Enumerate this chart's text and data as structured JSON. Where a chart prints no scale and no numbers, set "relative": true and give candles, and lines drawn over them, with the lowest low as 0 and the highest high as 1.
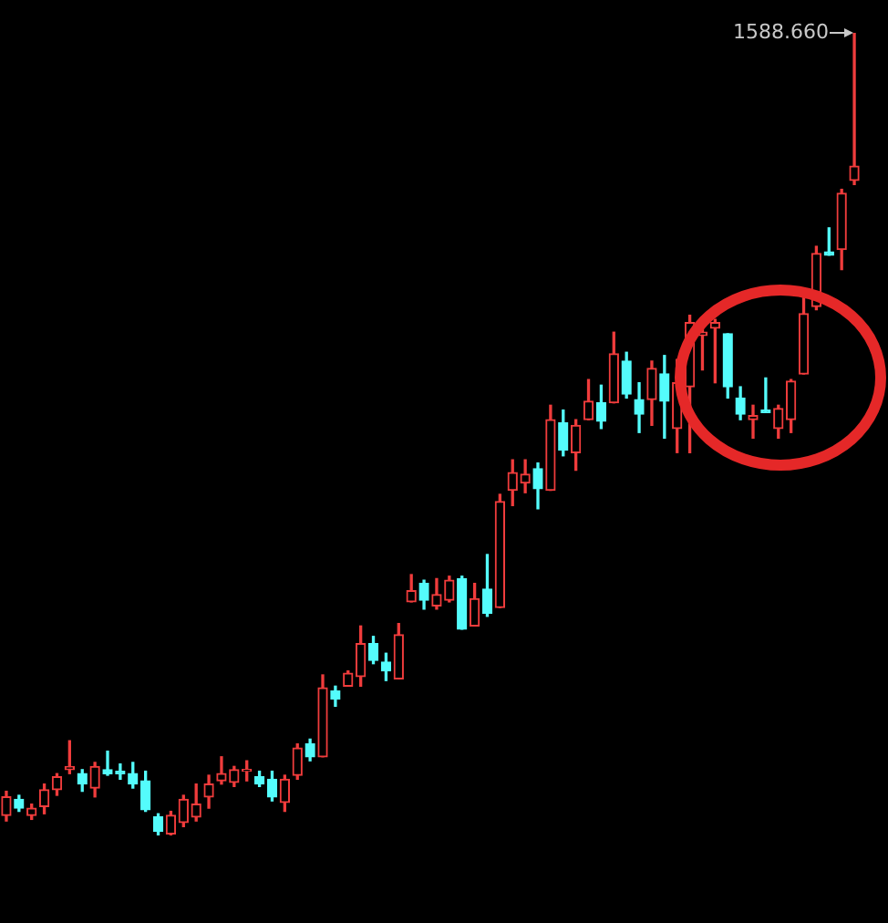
{
  "chart_data": {
    "type": "candlestick",
    "relative": true,
    "categories": [
      null,
      null,
      null,
      null,
      null,
      null,
      null,
      null,
      null,
      null,
      null,
      null,
      null,
      null,
      null,
      null,
      null,
      null,
      null,
      null,
      null,
      null,
      null,
      null,
      null,
      null,
      null,
      null,
      null,
      null,
      null,
      null,
      null,
      null,
      null,
      null,
      null,
      null,
      null,
      null,
      null,
      null,
      null,
      null,
      null,
      null,
      null,
      null,
      null,
      null,
      null,
      null,
      null,
      null,
      null,
      null,
      null,
      null,
      null,
      null,
      null,
      null,
      null,
      null,
      null,
      null,
      null,
      null
    ],
    "ohlc": [
      [
        0.025,
        0.055,
        0.018,
        0.048
      ],
      [
        0.045,
        0.05,
        0.03,
        0.034
      ],
      [
        0.025,
        0.039,
        0.02,
        0.034
      ],
      [
        0.036,
        0.064,
        0.027,
        0.057
      ],
      [
        0.057,
        0.077,
        0.05,
        0.073
      ],
      [
        0.082,
        0.118,
        0.077,
        0.086
      ],
      [
        0.077,
        0.082,
        0.055,
        0.064
      ],
      [
        0.059,
        0.091,
        0.048,
        0.086
      ],
      [
        0.082,
        0.105,
        0.075,
        0.077
      ],
      [
        0.08,
        0.089,
        0.07,
        0.077
      ],
      [
        0.077,
        0.091,
        0.059,
        0.064
      ],
      [
        0.068,
        0.08,
        0.03,
        0.032
      ],
      [
        0.023,
        0.027,
        0,
        0.005
      ],
      [
        0.002,
        0.03,
        0,
        0.025
      ],
      [
        0.016,
        0.05,
        0.011,
        0.045
      ],
      [
        0.023,
        0.064,
        0.018,
        0.039
      ],
      [
        0.048,
        0.075,
        0.034,
        0.064
      ],
      [
        0.068,
        0.098,
        0.064,
        0.077
      ],
      [
        0.066,
        0.086,
        0.061,
        0.082
      ],
      [
        0.08,
        0.093,
        0.068,
        0.082
      ],
      [
        0.073,
        0.08,
        0.061,
        0.064
      ],
      [
        0.07,
        0.08,
        0.043,
        0.048
      ],
      [
        0.041,
        0.075,
        0.03,
        0.07
      ],
      [
        0.075,
        0.114,
        0.07,
        0.109
      ],
      [
        0.114,
        0.12,
        0.093,
        0.098
      ],
      [
        0.098,
        0.2,
        0.098,
        0.184
      ],
      [
        0.18,
        0.186,
        0.161,
        0.17
      ],
      [
        0.186,
        0.205,
        0.186,
        0.202
      ],
      [
        0.198,
        0.261,
        0.186,
        0.239
      ],
      [
        0.239,
        0.248,
        0.214,
        0.218
      ],
      [
        0.216,
        0.227,
        0.193,
        0.205
      ],
      [
        0.195,
        0.264,
        0.195,
        0.25
      ],
      [
        0.291,
        0.325,
        0.291,
        0.305
      ],
      [
        0.314,
        0.318,
        0.282,
        0.293
      ],
      [
        0.286,
        0.32,
        0.282,
        0.3
      ],
      [
        0.293,
        0.323,
        0.291,
        0.318
      ],
      [
        0.32,
        0.323,
        0.257,
        0.257
      ],
      [
        0.261,
        0.314,
        0.261,
        0.295
      ],
      [
        0.307,
        0.35,
        0.273,
        0.277
      ],
      [
        0.284,
        0.425,
        0.284,
        0.416
      ],
      [
        0.43,
        0.468,
        0.411,
        0.452
      ],
      [
        0.439,
        0.468,
        0.427,
        0.45
      ],
      [
        0.457,
        0.464,
        0.407,
        0.432
      ],
      [
        0.43,
        0.536,
        0.43,
        0.518
      ],
      [
        0.514,
        0.53,
        0.473,
        0.48
      ],
      [
        0.477,
        0.518,
        0.455,
        0.511
      ],
      [
        0.518,
        0.568,
        0.518,
        0.541
      ],
      [
        0.539,
        0.561,
        0.507,
        0.516
      ],
      [
        0.539,
        0.627,
        0.539,
        0.6
      ],
      [
        0.591,
        0.602,
        0.545,
        0.55
      ],
      [
        0.543,
        0.564,
        0.502,
        0.525
      ],
      [
        0.543,
        0.591,
        0.511,
        0.582
      ],
      [
        0.575,
        0.598,
        0.495,
        0.541
      ],
      [
        0.507,
        0.593,
        0.477,
        0.564
      ],
      [
        0.559,
        0.648,
        0.477,
        0.639
      ],
      [
        0.623,
        0.643,
        0.58,
        0.627
      ],
      [
        0.632,
        0.643,
        0.564,
        0.639
      ],
      [
        0.625,
        0.625,
        0.545,
        0.559
      ],
      [
        0.545,
        0.559,
        0.518,
        0.525
      ],
      [
        0.518,
        0.536,
        0.495,
        0.523
      ],
      [
        0.53,
        0.57,
        0.527,
        0.527
      ],
      [
        0.507,
        0.536,
        0.495,
        0.532
      ],
      [
        0.518,
        0.568,
        0.502,
        0.566
      ],
      [
        0.575,
        0.677,
        0.575,
        0.65
      ],
      [
        0.659,
        0.734,
        0.655,
        0.725
      ],
      [
        0.727,
        0.757,
        0.723,
        0.723
      ],
      [
        0.73,
        0.805,
        0.705,
        0.8
      ],
      [
        0.816,
        1,
        0.811,
        0.834
      ]
    ],
    "annotations": [
      "1588.660"
    ]
  }
}
